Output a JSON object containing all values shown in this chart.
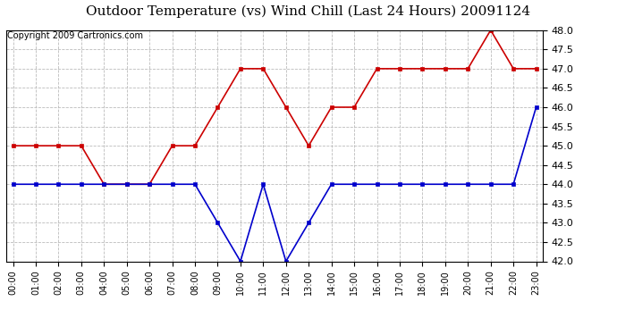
{
  "title": "Outdoor Temperature (vs) Wind Chill (Last 24 Hours) 20091124",
  "copyright": "Copyright 2009 Cartronics.com",
  "hours": [
    "00:00",
    "01:00",
    "02:00",
    "03:00",
    "04:00",
    "05:00",
    "06:00",
    "07:00",
    "08:00",
    "09:00",
    "10:00",
    "11:00",
    "12:00",
    "13:00",
    "14:00",
    "15:00",
    "16:00",
    "17:00",
    "18:00",
    "19:00",
    "20:00",
    "21:00",
    "22:00",
    "23:00"
  ],
  "temp": [
    45.0,
    45.0,
    45.0,
    45.0,
    44.0,
    44.0,
    44.0,
    45.0,
    45.0,
    46.0,
    47.0,
    47.0,
    46.0,
    45.0,
    46.0,
    46.0,
    47.0,
    47.0,
    47.0,
    47.0,
    47.0,
    48.0,
    47.0,
    47.0
  ],
  "wind_chill": [
    44.0,
    44.0,
    44.0,
    44.0,
    44.0,
    44.0,
    44.0,
    44.0,
    44.0,
    43.0,
    42.0,
    44.0,
    42.0,
    43.0,
    44.0,
    44.0,
    44.0,
    44.0,
    44.0,
    44.0,
    44.0,
    44.0,
    44.0,
    46.0
  ],
  "temp_color": "#cc0000",
  "wind_chill_color": "#0000cc",
  "bg_color": "#ffffff",
  "plot_bg_color": "#ffffff",
  "grid_color": "#bbbbbb",
  "ylim": [
    42.0,
    48.0
  ],
  "yticks": [
    42.0,
    42.5,
    43.0,
    43.5,
    44.0,
    44.5,
    45.0,
    45.5,
    46.0,
    46.5,
    47.0,
    47.5,
    48.0
  ],
  "title_fontsize": 11,
  "copyright_fontsize": 7
}
